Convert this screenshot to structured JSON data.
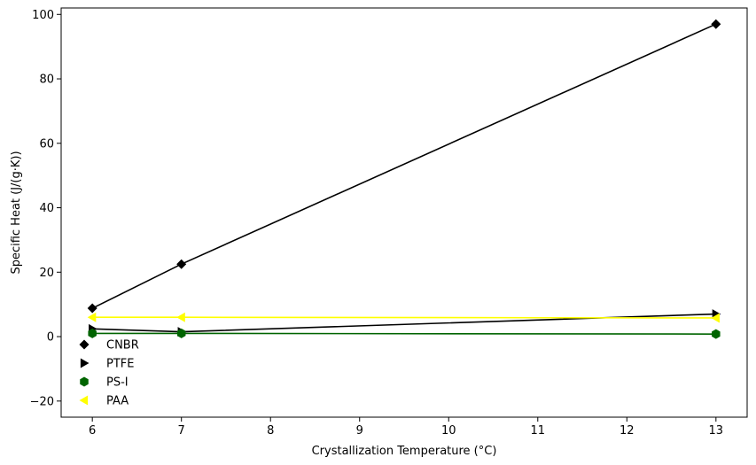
{
  "chart_data": {
    "type": "line",
    "title": "",
    "xlabel": "Crystallization Temperature (°C)",
    "ylabel": "Specific Heat (J/(g·K))",
    "xlim": [
      5.65,
      13.35
    ],
    "ylim": [
      -25,
      102
    ],
    "xticks": [
      6,
      7,
      8,
      9,
      10,
      11,
      12,
      13
    ],
    "yticks": [
      -20,
      0,
      20,
      40,
      60,
      80,
      100
    ],
    "grid": false,
    "legend_position": "lower-left",
    "series": [
      {
        "name": "CNBR",
        "color": "#000000",
        "marker": "diamond",
        "x": [
          6,
          7,
          13
        ],
        "y": [
          8.8,
          22.5,
          97
        ]
      },
      {
        "name": "PTFE",
        "color": "#000000",
        "marker": "triangle-right",
        "x": [
          6,
          7,
          13
        ],
        "y": [
          2.4,
          1.5,
          7
        ]
      },
      {
        "name": "PS-I",
        "color": "#006400",
        "marker": "hexagon",
        "x": [
          6,
          7,
          13
        ],
        "y": [
          1.0,
          1.0,
          0.8
        ]
      },
      {
        "name": "PAA",
        "color": "#ffff00",
        "marker": "triangle-left",
        "x": [
          6,
          7,
          13
        ],
        "y": [
          6.0,
          6.0,
          5.8
        ]
      }
    ]
  }
}
